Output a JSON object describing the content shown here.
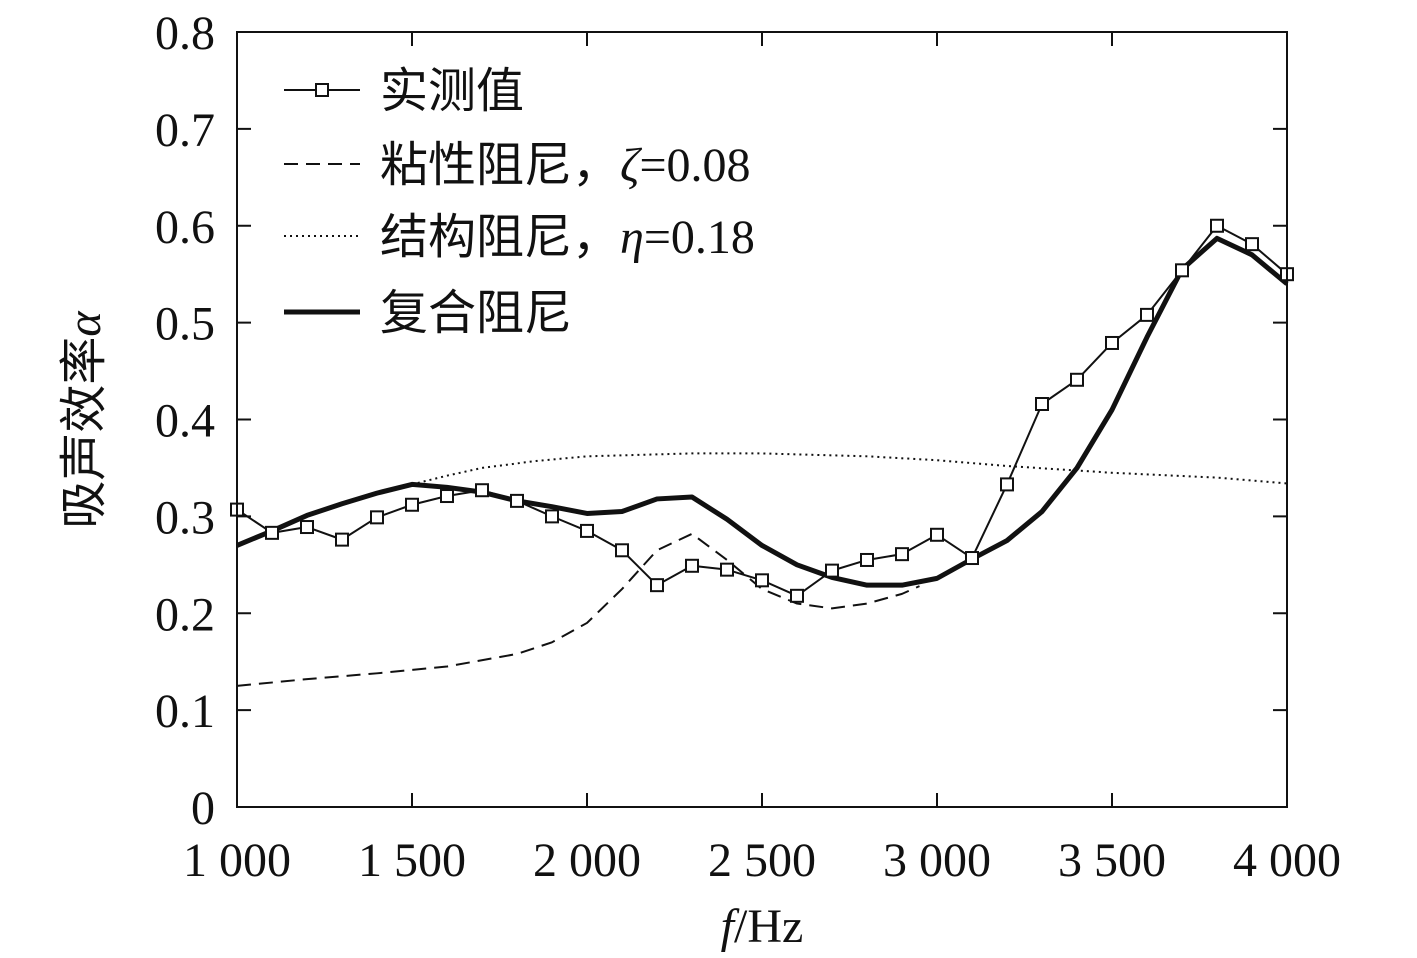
{
  "chart_data": {
    "type": "line",
    "title": "",
    "xlabel_italic": "f",
    "xlabel_rest": "/Hz",
    "ylabel": "吸声效率",
    "ylabel_symbol": "α",
    "xlim": [
      1000,
      4000
    ],
    "ylim": [
      0,
      0.8
    ],
    "xticks": [
      1000,
      1500,
      2000,
      2500,
      3000,
      3500,
      4000
    ],
    "xtick_labels": [
      "1 000",
      "1 500",
      "2 000",
      "2 500",
      "3 000",
      "3 500",
      "4 000"
    ],
    "yticks": [
      0,
      0.1,
      0.2,
      0.3,
      0.4,
      0.5,
      0.6,
      0.7,
      0.8
    ],
    "ytick_labels": [
      "0",
      "0.1",
      "0.2",
      "0.3",
      "0.4",
      "0.5",
      "0.6",
      "0.7",
      "0.8"
    ],
    "grid": false,
    "legend_position": "top-left",
    "series": [
      {
        "name": "实测值",
        "style": "line-square-markers",
        "x": [
          1000,
          1100,
          1200,
          1300,
          1400,
          1500,
          1600,
          1700,
          1800,
          1900,
          2000,
          2100,
          2200,
          2300,
          2400,
          2500,
          2600,
          2700,
          2800,
          2900,
          3000,
          3100,
          3200,
          3300,
          3400,
          3500,
          3600,
          3700,
          3800,
          3900,
          4000
        ],
        "y": [
          0.307,
          0.283,
          0.289,
          0.276,
          0.299,
          0.312,
          0.321,
          0.327,
          0.316,
          0.3,
          0.285,
          0.265,
          0.229,
          0.249,
          0.245,
          0.234,
          0.218,
          0.244,
          0.255,
          0.261,
          0.281,
          0.257,
          0.333,
          0.416,
          0.441,
          0.479,
          0.508,
          0.554,
          0.6,
          0.581,
          0.55
        ]
      },
      {
        "name": "粘性阻尼，",
        "symbol": "ζ",
        "param": "=0.08",
        "style": "dashed",
        "x": [
          1000,
          1200,
          1400,
          1600,
          1800,
          1900,
          2000,
          2100,
          2200,
          2300,
          2400,
          2500,
          2600,
          2700,
          2800,
          2900,
          2950
        ],
        "y": [
          0.125,
          0.132,
          0.138,
          0.145,
          0.158,
          0.17,
          0.19,
          0.225,
          0.265,
          0.282,
          0.255,
          0.225,
          0.21,
          0.205,
          0.21,
          0.22,
          0.228
        ]
      },
      {
        "name": "结构阻尼，",
        "symbol": "η",
        "param": "=0.18",
        "style": "dotted",
        "x": [
          1500,
          1600,
          1700,
          1850,
          2000,
          2300,
          2500,
          2800,
          3000,
          3200,
          3500,
          3800,
          4000
        ],
        "y": [
          0.333,
          0.342,
          0.35,
          0.357,
          0.362,
          0.365,
          0.365,
          0.362,
          0.358,
          0.352,
          0.345,
          0.34,
          0.334
        ]
      },
      {
        "name": "复合阻尼",
        "style": "thick",
        "x": [
          1000,
          1100,
          1200,
          1300,
          1400,
          1500,
          1600,
          1700,
          1800,
          1900,
          2000,
          2100,
          2200,
          2300,
          2400,
          2500,
          2600,
          2700,
          2800,
          2900,
          3000,
          3100,
          3200,
          3300,
          3400,
          3500,
          3600,
          3700,
          3800,
          3900,
          4000
        ],
        "y": [
          0.27,
          0.285,
          0.301,
          0.313,
          0.324,
          0.333,
          0.33,
          0.325,
          0.316,
          0.31,
          0.303,
          0.305,
          0.318,
          0.32,
          0.297,
          0.27,
          0.25,
          0.237,
          0.229,
          0.229,
          0.236,
          0.256,
          0.275,
          0.305,
          0.35,
          0.41,
          0.485,
          0.555,
          0.587,
          0.57,
          0.54
        ]
      }
    ]
  }
}
